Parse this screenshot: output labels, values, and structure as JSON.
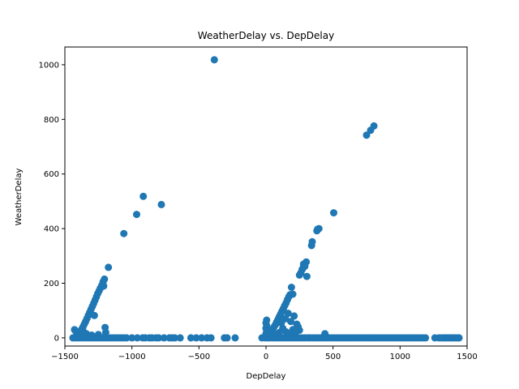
{
  "chart_data": {
    "type": "scatter",
    "title": "WeatherDelay vs. DepDelay",
    "xlabel": "DepDelay",
    "ylabel": "WeatherDelay",
    "xlim": [
      -1500,
      1500
    ],
    "ylim": [
      -30,
      1065
    ],
    "xticks": [
      -1500,
      -1000,
      -500,
      0,
      500,
      1000,
      1500
    ],
    "yticks": [
      0,
      200,
      400,
      600,
      800,
      1000
    ],
    "grid": false,
    "color": "#1f77b4",
    "points": [
      [
        -385,
        1018
      ],
      [
        750,
        742
      ],
      [
        780,
        760
      ],
      [
        805,
        776
      ],
      [
        -915,
        518
      ],
      [
        -965,
        452
      ],
      [
        -780,
        488
      ],
      [
        -1060,
        382
      ],
      [
        505,
        458
      ],
      [
        -1175,
        258
      ],
      [
        -1205,
        215
      ],
      [
        -1215,
        205
      ],
      [
        -1225,
        192
      ],
      [
        -1235,
        182
      ],
      [
        -1245,
        172
      ],
      [
        -1255,
        162
      ],
      [
        -1265,
        150
      ],
      [
        -1275,
        138
      ],
      [
        -1285,
        126
      ],
      [
        -1295,
        115
      ],
      [
        -1305,
        104
      ],
      [
        -1315,
        93
      ],
      [
        -1325,
        82
      ],
      [
        -1335,
        71
      ],
      [
        -1345,
        60
      ],
      [
        -1355,
        50
      ],
      [
        -1365,
        40
      ],
      [
        -1375,
        31
      ],
      [
        -1385,
        22
      ],
      [
        -1395,
        14
      ],
      [
        -1405,
        7
      ],
      [
        -1415,
        3
      ],
      [
        -1280,
        82
      ],
      [
        -1200,
        38
      ],
      [
        -1210,
        190
      ],
      [
        -1420,
        25
      ],
      [
        -1428,
        30
      ],
      [
        -1410,
        18
      ],
      [
        -1360,
        22
      ],
      [
        -1340,
        15
      ],
      [
        -1300,
        10
      ],
      [
        -1250,
        12
      ],
      [
        -1195,
        20
      ],
      [
        -1440,
        0
      ],
      [
        -1420,
        0
      ],
      [
        -1400,
        0
      ],
      [
        -1380,
        0
      ],
      [
        -1360,
        0
      ],
      [
        -1340,
        0
      ],
      [
        -1320,
        0
      ],
      [
        -1300,
        0
      ],
      [
        -1280,
        0
      ],
      [
        -1260,
        0
      ],
      [
        -1240,
        0
      ],
      [
        -1220,
        0
      ],
      [
        -1200,
        0
      ],
      [
        -1180,
        0
      ],
      [
        -1160,
        0
      ],
      [
        -1140,
        0
      ],
      [
        -1120,
        0
      ],
      [
        -1100,
        0
      ],
      [
        -1080,
        0
      ],
      [
        -1060,
        0
      ],
      [
        -1040,
        0
      ],
      [
        -1000,
        0
      ],
      [
        -960,
        0
      ],
      [
        -920,
        0
      ],
      [
        -900,
        0
      ],
      [
        -870,
        0
      ],
      [
        -850,
        0
      ],
      [
        -820,
        0
      ],
      [
        -800,
        0
      ],
      [
        -760,
        0
      ],
      [
        -720,
        0
      ],
      [
        -700,
        0
      ],
      [
        -680,
        0
      ],
      [
        -640,
        0
      ],
      [
        -560,
        0
      ],
      [
        -520,
        0
      ],
      [
        -480,
        0
      ],
      [
        -440,
        0
      ],
      [
        -410,
        0
      ],
      [
        -310,
        0
      ],
      [
        -290,
        0
      ],
      [
        -230,
        0
      ],
      [
        -30,
        0
      ],
      [
        345,
        352
      ],
      [
        340,
        338
      ],
      [
        380,
        392
      ],
      [
        395,
        400
      ],
      [
        385,
        398
      ],
      [
        300,
        278
      ],
      [
        280,
        270
      ],
      [
        290,
        262
      ],
      [
        270,
        250
      ],
      [
        260,
        238
      ],
      [
        250,
        230
      ],
      [
        305,
        225
      ],
      [
        275,
        255
      ],
      [
        190,
        185
      ],
      [
        200,
        160
      ],
      [
        180,
        158
      ],
      [
        170,
        150
      ],
      [
        160,
        140
      ],
      [
        150,
        128
      ],
      [
        140,
        118
      ],
      [
        130,
        108
      ],
      [
        120,
        98
      ],
      [
        110,
        88
      ],
      [
        100,
        78
      ],
      [
        90,
        68
      ],
      [
        80,
        58
      ],
      [
        70,
        48
      ],
      [
        60,
        40
      ],
      [
        50,
        32
      ],
      [
        40,
        24
      ],
      [
        30,
        16
      ],
      [
        20,
        10
      ],
      [
        10,
        5
      ],
      [
        5,
        65
      ],
      [
        0,
        55
      ],
      [
        5,
        45
      ],
      [
        0,
        35
      ],
      [
        5,
        25
      ],
      [
        0,
        15
      ],
      [
        230,
        50
      ],
      [
        240,
        40
      ],
      [
        250,
        28
      ],
      [
        220,
        20
      ],
      [
        200,
        30
      ],
      [
        175,
        12
      ],
      [
        150,
        22
      ],
      [
        125,
        35
      ],
      [
        100,
        20
      ],
      [
        75,
        14
      ],
      [
        440,
        15
      ],
      [
        210,
        80
      ],
      [
        185,
        60
      ],
      [
        165,
        90
      ],
      [
        145,
        70
      ],
      [
        115,
        55
      ],
      [
        -5,
        0
      ],
      [
        15,
        0
      ],
      [
        30,
        0
      ],
      [
        50,
        0
      ],
      [
        70,
        0
      ],
      [
        90,
        0
      ],
      [
        110,
        0
      ],
      [
        130,
        0
      ],
      [
        150,
        0
      ],
      [
        170,
        0
      ],
      [
        190,
        0
      ],
      [
        210,
        0
      ],
      [
        230,
        0
      ],
      [
        250,
        0
      ],
      [
        270,
        0
      ],
      [
        290,
        0
      ],
      [
        310,
        0
      ],
      [
        330,
        0
      ],
      [
        350,
        0
      ],
      [
        370,
        0
      ],
      [
        390,
        0
      ],
      [
        410,
        0
      ],
      [
        430,
        0
      ],
      [
        450,
        0
      ],
      [
        470,
        0
      ],
      [
        490,
        0
      ],
      [
        510,
        0
      ],
      [
        530,
        0
      ],
      [
        550,
        0
      ],
      [
        570,
        0
      ],
      [
        590,
        0
      ],
      [
        610,
        0
      ],
      [
        630,
        0
      ],
      [
        650,
        0
      ],
      [
        670,
        0
      ],
      [
        690,
        0
      ],
      [
        710,
        0
      ],
      [
        730,
        0
      ],
      [
        750,
        0
      ],
      [
        770,
        0
      ],
      [
        790,
        0
      ],
      [
        810,
        0
      ],
      [
        830,
        0
      ],
      [
        850,
        0
      ],
      [
        870,
        0
      ],
      [
        890,
        0
      ],
      [
        910,
        0
      ],
      [
        930,
        0
      ],
      [
        950,
        0
      ],
      [
        970,
        0
      ],
      [
        990,
        0
      ],
      [
        1010,
        0
      ],
      [
        1030,
        0
      ],
      [
        1050,
        0
      ],
      [
        1070,
        0
      ],
      [
        1090,
        0
      ],
      [
        1110,
        0
      ],
      [
        1130,
        0
      ],
      [
        1150,
        0
      ],
      [
        1170,
        0
      ],
      [
        1190,
        0
      ],
      [
        1260,
        0
      ],
      [
        1290,
        0
      ],
      [
        1310,
        0
      ],
      [
        1325,
        0
      ],
      [
        1340,
        0
      ],
      [
        1355,
        0
      ],
      [
        1370,
        0
      ],
      [
        1385,
        0
      ],
      [
        1400,
        0
      ],
      [
        1415,
        0
      ],
      [
        1430,
        0
      ],
      [
        1440,
        0
      ]
    ]
  }
}
